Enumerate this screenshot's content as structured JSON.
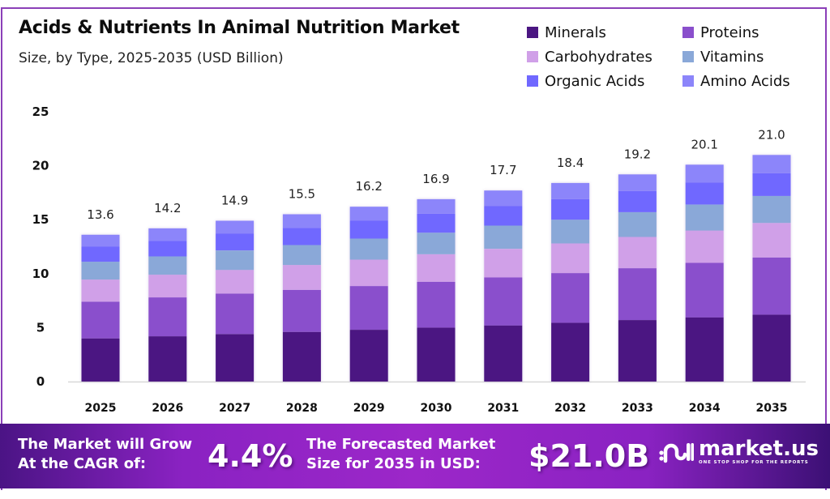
{
  "header": {
    "title": "Acids & Nutrients In Animal Nutrition Market",
    "subtitle": "Size, by Type, 2025-2035 (USD Billion)"
  },
  "chart_data": {
    "type": "bar",
    "stacked": true,
    "title": "Acids & Nutrients In Animal Nutrition Market",
    "subtitle": "Size, by Type, 2025-2035 (USD Billion)",
    "xlabel": "",
    "ylabel": "",
    "ylim": [
      0,
      25
    ],
    "yticks": [
      0,
      5,
      10,
      15,
      20,
      25
    ],
    "grid": false,
    "legend_position": "top-right",
    "categories": [
      "2025",
      "2026",
      "2027",
      "2028",
      "2029",
      "2030",
      "2031",
      "2032",
      "2033",
      "2034",
      "2035"
    ],
    "totals": [
      13.6,
      14.2,
      14.9,
      15.5,
      16.2,
      16.9,
      17.7,
      18.4,
      19.2,
      20.1,
      21.0
    ],
    "total_labels": [
      "13.6",
      "14.2",
      "14.9",
      "15.5",
      "16.2",
      "16.9",
      "17.7",
      "18.4",
      "19.2",
      "20.1",
      "21.0"
    ],
    "series": [
      {
        "name": "Minerals",
        "color": "#4b1682",
        "values": [
          4.0,
          4.2,
          4.4,
          4.6,
          4.8,
          5.0,
          5.2,
          5.45,
          5.7,
          5.95,
          6.2
        ]
      },
      {
        "name": "Proteins",
        "color": "#8a4fcc",
        "values": [
          3.4,
          3.6,
          3.75,
          3.9,
          4.05,
          4.25,
          4.45,
          4.6,
          4.8,
          5.05,
          5.3
        ]
      },
      {
        "name": "Carbohydrates",
        "color": "#d0a0e8",
        "values": [
          2.05,
          2.1,
          2.2,
          2.3,
          2.45,
          2.55,
          2.65,
          2.75,
          2.9,
          3.0,
          3.2
        ]
      },
      {
        "name": "Vitamins",
        "color": "#8aa8d8",
        "values": [
          1.65,
          1.7,
          1.8,
          1.85,
          1.95,
          2.0,
          2.15,
          2.2,
          2.3,
          2.4,
          2.5
        ]
      },
      {
        "name": "Organic Acids",
        "color": "#7068ff",
        "values": [
          1.4,
          1.45,
          1.55,
          1.6,
          1.65,
          1.75,
          1.8,
          1.9,
          1.95,
          2.05,
          2.1
        ]
      },
      {
        "name": "Amino Acids",
        "color": "#8c85fa",
        "values": [
          1.1,
          1.15,
          1.2,
          1.25,
          1.3,
          1.35,
          1.45,
          1.5,
          1.55,
          1.65,
          1.7
        ]
      }
    ]
  },
  "legend": [
    {
      "label": "Minerals",
      "color": "#4b1682"
    },
    {
      "label": "Proteins",
      "color": "#8a4fcc"
    },
    {
      "label": "Carbohydrates",
      "color": "#d0a0e8"
    },
    {
      "label": "Vitamins",
      "color": "#8aa8d8"
    },
    {
      "label": "Organic Acids",
      "color": "#7068ff"
    },
    {
      "label": "Amino Acids",
      "color": "#8c85fa"
    }
  ],
  "footer": {
    "cagr_text_line1": "The Market will Grow",
    "cagr_text_line2": "At the CAGR of:",
    "cagr_value": "4.4%",
    "forecast_text_line1": "The Forecasted Market",
    "forecast_text_line2": "Size for 2035 in USD:",
    "forecast_value": "$21.0B",
    "brand_name": "market.us",
    "brand_tagline": "ONE STOP SHOP FOR THE REPORTS"
  },
  "colors": {
    "frame_border": "#8b3fb8",
    "footer_gradient_start": "#4b1485",
    "footer_gradient_mid": "#9c27c9",
    "footer_gradient_end": "#3c1075"
  }
}
